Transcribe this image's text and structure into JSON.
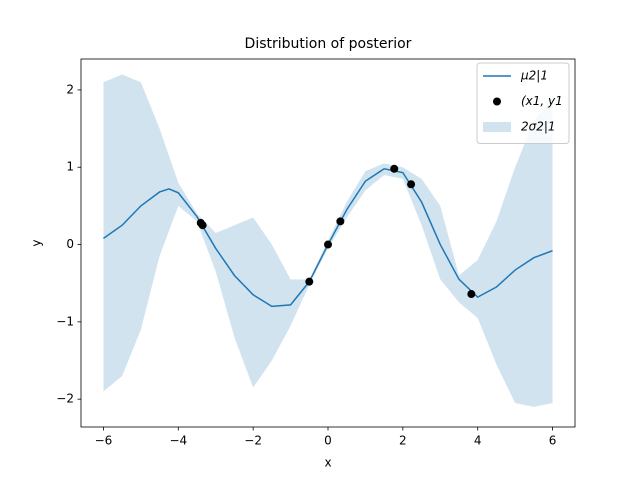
{
  "chart_data": {
    "type": "line",
    "title": "Distribution of posterior",
    "x_label": "x",
    "y_label": "y",
    "xlim": [
      -6.6,
      6.6
    ],
    "ylim": [
      -2.36,
      2.4
    ],
    "xticks": [
      {
        "value": -6,
        "label": "−6"
      },
      {
        "value": -4,
        "label": "−4"
      },
      {
        "value": -2,
        "label": "−2"
      },
      0,
      2,
      4,
      6
    ],
    "yticks": [
      {
        "value": -2,
        "label": "−2"
      },
      {
        "value": -1,
        "label": "−1"
      },
      0,
      1,
      2
    ],
    "legend": "upper right",
    "series": [
      {
        "name": "μ2|1",
        "type": "line",
        "color": "#1f77b4",
        "x": [
          -6,
          -5.5,
          -5,
          -4.5,
          -4.25,
          -4,
          -3.5,
          -3,
          -2.5,
          -2,
          -1.5,
          -1,
          -0.5,
          0,
          0.5,
          1,
          1.5,
          2,
          2.5,
          3,
          3.5,
          4,
          4.5,
          5,
          5.5,
          6
        ],
        "values": [
          0.08,
          0.25,
          0.5,
          0.68,
          0.72,
          0.67,
          0.36,
          -0.05,
          -0.4,
          -0.65,
          -0.8,
          -0.78,
          -0.48,
          0.0,
          0.45,
          0.82,
          0.98,
          0.93,
          0.55,
          0.0,
          -0.45,
          -0.68,
          -0.55,
          -0.33,
          -0.17,
          -0.08
        ]
      },
      {
        "name": "(x1, y1",
        "type": "scatter",
        "color": "#000000",
        "x": [
          -3.4,
          -3.35,
          -0.5,
          0,
          0.33,
          1.77,
          2.22,
          3.83
        ],
        "values": [
          0.28,
          0.25,
          -0.48,
          0.0,
          0.3,
          0.98,
          0.78,
          -0.64
        ]
      },
      {
        "name": "2σ2|1",
        "type": "band",
        "color": "#d2e3f0",
        "x": [
          -6,
          -5.5,
          -5,
          -4.5,
          -4,
          -3.5,
          -3,
          -2.5,
          -2,
          -1.5,
          -1,
          -0.5,
          0,
          0.5,
          1,
          1.5,
          2,
          2.5,
          3,
          3.5,
          4,
          4.5,
          5,
          5.5,
          6
        ],
        "upper": [
          2.1,
          2.2,
          2.1,
          1.5,
          0.8,
          0.4,
          0.15,
          0.25,
          0.35,
          0.0,
          -0.45,
          -0.45,
          0.05,
          0.55,
          0.95,
          1.05,
          1.0,
          0.85,
          0.5,
          -0.4,
          -0.2,
          0.3,
          1.0,
          1.6,
          1.9
        ],
        "lower": [
          -1.9,
          -1.7,
          -1.1,
          -0.15,
          0.5,
          0.3,
          -0.35,
          -1.2,
          -1.85,
          -1.5,
          -1.05,
          -0.52,
          -0.05,
          0.35,
          0.7,
          0.9,
          0.85,
          0.25,
          -0.45,
          -0.75,
          -0.95,
          -1.55,
          -2.05,
          -2.1,
          -2.05
        ]
      }
    ]
  }
}
